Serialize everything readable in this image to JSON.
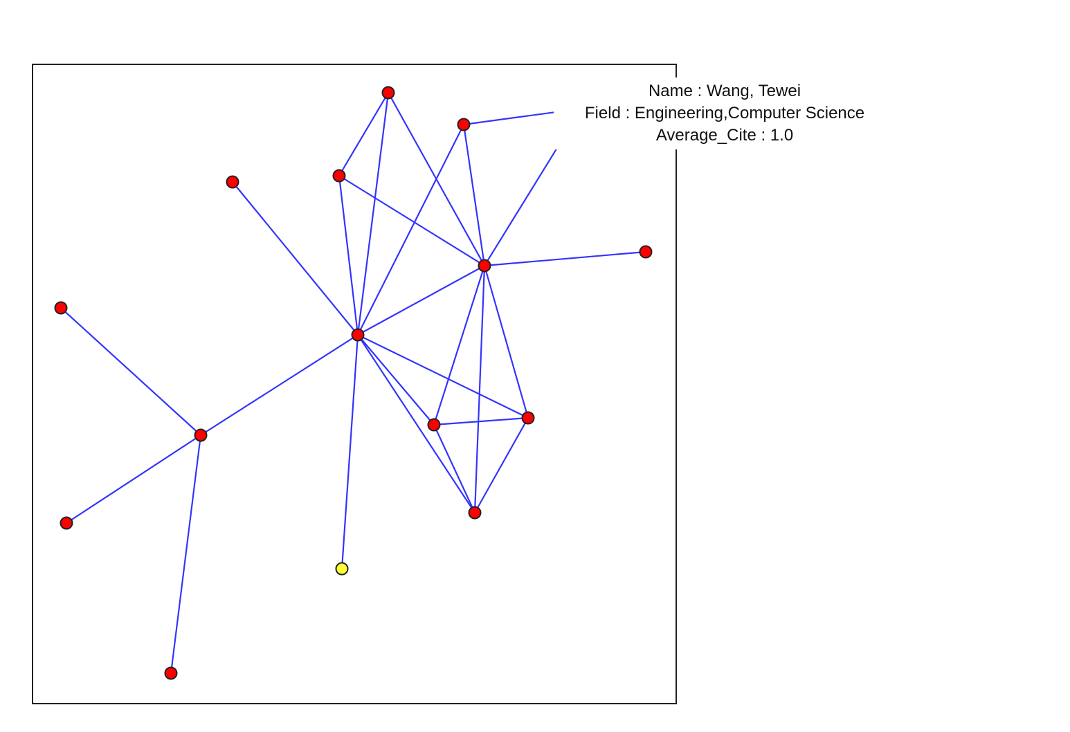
{
  "colors": {
    "edge": "#3333ff",
    "node_default": "#ff0000",
    "node_selected": "#ffff33"
  },
  "tooltip": {
    "name_line": "Name : Wang, Tewei",
    "field_line": "Field : Engineering,Computer Science",
    "cite_line": "Average_Cite : 1.0"
  },
  "graph": {
    "nodes": [
      {
        "id": "n1",
        "state": "default"
      },
      {
        "id": "n2",
        "state": "default"
      },
      {
        "id": "n3",
        "state": "default"
      },
      {
        "id": "n4",
        "state": "default"
      },
      {
        "id": "n5",
        "state": "default"
      },
      {
        "id": "n6",
        "state": "default"
      },
      {
        "id": "n7",
        "state": "default"
      },
      {
        "id": "n8",
        "state": "default"
      },
      {
        "id": "n9",
        "state": "default"
      },
      {
        "id": "n10",
        "state": "default"
      },
      {
        "id": "n11",
        "state": "default"
      },
      {
        "id": "n12",
        "state": "default"
      },
      {
        "id": "n13",
        "state": "default"
      },
      {
        "id": "n14",
        "state": "default"
      },
      {
        "id": "n15",
        "state": "default"
      },
      {
        "id": "n16",
        "state": "selected"
      }
    ],
    "edges": [
      [
        "n1",
        "n3"
      ],
      [
        "n1",
        "n6"
      ],
      [
        "n1",
        "n7"
      ],
      [
        "n2",
        "n6"
      ],
      [
        "n2",
        "n7"
      ],
      [
        "n3",
        "n6"
      ],
      [
        "n3",
        "n7"
      ],
      [
        "n4",
        "n6"
      ],
      [
        "n5",
        "n11"
      ],
      [
        "n6",
        "n7"
      ],
      [
        "n6",
        "n8"
      ],
      [
        "n6",
        "n9"
      ],
      [
        "n6",
        "n10"
      ],
      [
        "n6",
        "n11"
      ],
      [
        "n6",
        "n16"
      ],
      [
        "n7",
        "n8"
      ],
      [
        "n7",
        "n9"
      ],
      [
        "n7",
        "n10"
      ],
      [
        "n7",
        "n15"
      ],
      [
        "n8",
        "n9"
      ],
      [
        "n8",
        "n10"
      ],
      [
        "n9",
        "n10"
      ],
      [
        "n11",
        "n12"
      ],
      [
        "n11",
        "n13"
      ],
      [
        "n2",
        "n14"
      ],
      [
        "n7",
        "n14"
      ]
    ]
  }
}
